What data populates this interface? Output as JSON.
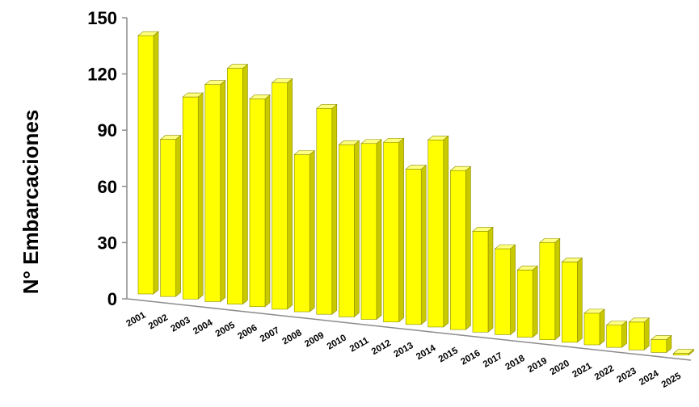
{
  "chart_data": {
    "type": "bar",
    "title": "",
    "xlabel": "",
    "ylabel": "N° Embarcaciones",
    "ylim": [
      0,
      150
    ],
    "yticks": [
      0,
      30,
      60,
      90,
      120,
      150
    ],
    "grid": false,
    "legend": "none",
    "colors": {
      "bar_front": "#ffff00",
      "bar_side": "#c9c900",
      "bar_top": "#ffff80",
      "outline": "#8a8a00"
    },
    "categories": [
      "2001",
      "2002",
      "2003",
      "2004",
      "2005",
      "2006",
      "2007",
      "2008",
      "2009",
      "2010",
      "2011",
      "2012",
      "2013",
      "2014",
      "2015",
      "2016",
      "2017",
      "2018",
      "2019",
      "2020",
      "2021",
      "2022",
      "2023",
      "2024",
      "2025"
    ],
    "values": [
      137,
      83,
      107,
      115,
      125,
      110,
      120,
      83,
      109,
      91,
      93,
      95,
      82,
      99,
      84,
      53,
      45,
      35,
      51,
      42,
      16,
      11,
      14,
      6,
      -1
    ]
  }
}
